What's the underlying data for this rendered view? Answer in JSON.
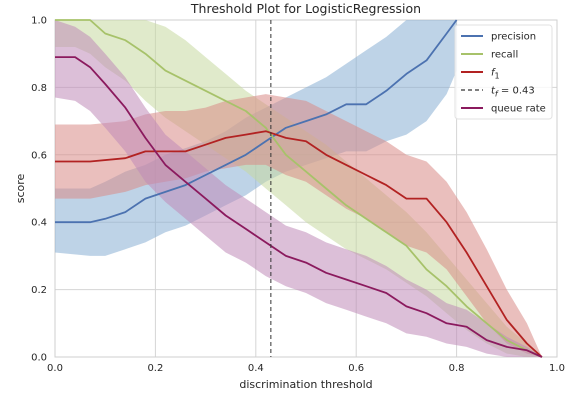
{
  "chart_data": {
    "type": "line",
    "title": "Threshold Plot for LogisticRegression",
    "xlabel": "discrimination threshold",
    "ylabel": "score",
    "xlim": [
      0,
      1
    ],
    "ylim": [
      0,
      1
    ],
    "xticks": [
      "0.0",
      "0.2",
      "0.4",
      "0.6",
      "0.8",
      "1.0"
    ],
    "yticks": [
      "0.0",
      "0.2",
      "0.4",
      "0.6",
      "0.8",
      "1.0"
    ],
    "grid": true,
    "legend_position": "upper-right",
    "threshold": {
      "x": 0.43,
      "legend_label_prefix": "t",
      "legend_label_sub": "f",
      "legend_label_suffix": " = 0.43",
      "color": "#333333"
    },
    "series": [
      {
        "name": "precision",
        "color": "#4c72b0",
        "band_color": "#89aed3",
        "x": [
          0.0,
          0.07,
          0.1,
          0.14,
          0.18,
          0.22,
          0.26,
          0.3,
          0.34,
          0.38,
          0.42,
          0.46,
          0.5,
          0.54,
          0.58,
          0.62,
          0.66,
          0.7,
          0.74,
          0.78,
          0.8
        ],
        "y": [
          0.4,
          0.4,
          0.41,
          0.43,
          0.47,
          0.49,
          0.51,
          0.54,
          0.57,
          0.6,
          0.64,
          0.68,
          0.7,
          0.72,
          0.75,
          0.75,
          0.79,
          0.84,
          0.88,
          0.96,
          1.0
        ],
        "upper": [
          0.5,
          0.5,
          0.52,
          0.55,
          0.57,
          0.6,
          0.62,
          0.64,
          0.67,
          0.71,
          0.74,
          0.77,
          0.8,
          0.83,
          0.87,
          0.91,
          0.95,
          1.0,
          1.0,
          1.0,
          1.0
        ],
        "lower": [
          0.31,
          0.3,
          0.3,
          0.32,
          0.34,
          0.37,
          0.39,
          0.42,
          0.45,
          0.48,
          0.52,
          0.55,
          0.57,
          0.59,
          0.61,
          0.61,
          0.64,
          0.66,
          0.7,
          0.78,
          0.85
        ]
      },
      {
        "name": "recall",
        "color": "#a7c26a",
        "band_color": "#c7d9a1",
        "x": [
          0.0,
          0.04,
          0.07,
          0.1,
          0.14,
          0.18,
          0.22,
          0.26,
          0.3,
          0.34,
          0.38,
          0.42,
          0.46,
          0.5,
          0.54,
          0.58,
          0.62,
          0.66,
          0.7,
          0.74,
          0.78,
          0.82,
          0.86,
          0.9,
          0.94,
          0.97
        ],
        "y": [
          1.0,
          1.0,
          1.0,
          0.96,
          0.94,
          0.9,
          0.85,
          0.82,
          0.79,
          0.76,
          0.73,
          0.68,
          0.6,
          0.55,
          0.5,
          0.45,
          0.41,
          0.37,
          0.33,
          0.26,
          0.21,
          0.15,
          0.1,
          0.05,
          0.02,
          0.0
        ],
        "upper": [
          1.0,
          1.0,
          1.0,
          1.0,
          1.0,
          1.0,
          0.98,
          0.94,
          0.89,
          0.84,
          0.79,
          0.75,
          0.71,
          0.67,
          0.63,
          0.58,
          0.53,
          0.48,
          0.43,
          0.37,
          0.3,
          0.23,
          0.16,
          0.09,
          0.04,
          0.0
        ],
        "lower": [
          0.92,
          0.92,
          0.9,
          0.86,
          0.82,
          0.76,
          0.71,
          0.67,
          0.63,
          0.59,
          0.55,
          0.5,
          0.45,
          0.4,
          0.36,
          0.32,
          0.29,
          0.26,
          0.22,
          0.18,
          0.13,
          0.08,
          0.04,
          0.01,
          0.0,
          0.0
        ]
      },
      {
        "name": "f1",
        "color": "#b22222",
        "band_color": "#d98a87",
        "x": [
          0.0,
          0.07,
          0.14,
          0.18,
          0.22,
          0.26,
          0.3,
          0.34,
          0.38,
          0.42,
          0.46,
          0.5,
          0.54,
          0.58,
          0.62,
          0.66,
          0.7,
          0.74,
          0.78,
          0.82,
          0.86,
          0.9,
          0.94,
          0.97
        ],
        "y": [
          0.58,
          0.58,
          0.59,
          0.61,
          0.61,
          0.61,
          0.63,
          0.65,
          0.66,
          0.67,
          0.65,
          0.64,
          0.6,
          0.57,
          0.54,
          0.51,
          0.47,
          0.47,
          0.4,
          0.31,
          0.21,
          0.11,
          0.04,
          0.0
        ],
        "upper": [
          0.69,
          0.69,
          0.7,
          0.72,
          0.73,
          0.73,
          0.74,
          0.76,
          0.77,
          0.78,
          0.77,
          0.76,
          0.73,
          0.7,
          0.67,
          0.64,
          0.6,
          0.58,
          0.52,
          0.43,
          0.32,
          0.2,
          0.1,
          0.0
        ],
        "lower": [
          0.47,
          0.47,
          0.49,
          0.51,
          0.52,
          0.53,
          0.55,
          0.56,
          0.57,
          0.57,
          0.54,
          0.52,
          0.48,
          0.44,
          0.41,
          0.37,
          0.33,
          0.31,
          0.26,
          0.18,
          0.1,
          0.04,
          0.01,
          0.0
        ]
      },
      {
        "name": "queue rate",
        "color": "#8b1a5e",
        "band_color": "#c08ab8",
        "x": [
          0.0,
          0.04,
          0.07,
          0.1,
          0.14,
          0.18,
          0.22,
          0.26,
          0.3,
          0.34,
          0.38,
          0.42,
          0.46,
          0.5,
          0.54,
          0.58,
          0.62,
          0.66,
          0.7,
          0.74,
          0.78,
          0.82,
          0.86,
          0.9,
          0.94,
          0.97
        ],
        "y": [
          0.89,
          0.89,
          0.86,
          0.81,
          0.74,
          0.65,
          0.57,
          0.52,
          0.47,
          0.42,
          0.38,
          0.34,
          0.3,
          0.28,
          0.25,
          0.23,
          0.21,
          0.19,
          0.15,
          0.13,
          0.1,
          0.09,
          0.05,
          0.03,
          0.02,
          0.0
        ],
        "upper": [
          1.0,
          0.98,
          0.95,
          0.9,
          0.83,
          0.74,
          0.66,
          0.61,
          0.56,
          0.51,
          0.47,
          0.43,
          0.39,
          0.37,
          0.34,
          0.32,
          0.3,
          0.27,
          0.23,
          0.2,
          0.16,
          0.14,
          0.1,
          0.06,
          0.03,
          0.0
        ],
        "lower": [
          0.77,
          0.76,
          0.73,
          0.68,
          0.61,
          0.52,
          0.46,
          0.41,
          0.36,
          0.31,
          0.28,
          0.24,
          0.21,
          0.19,
          0.16,
          0.14,
          0.12,
          0.1,
          0.07,
          0.06,
          0.04,
          0.03,
          0.01,
          0.0,
          0.0,
          0.0
        ]
      }
    ]
  }
}
